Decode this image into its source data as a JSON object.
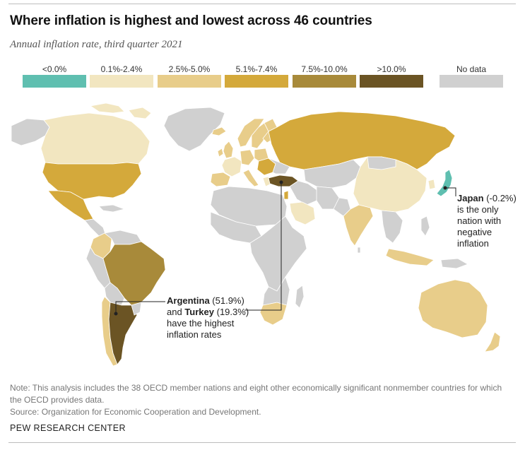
{
  "title": "Where inflation is highest and lowest across 46 countries",
  "subtitle": "Annual inflation rate, third quarter 2021",
  "legend": [
    {
      "label": "<0.0%",
      "color": "#5fbfb0"
    },
    {
      "label": "0.1%-2.4%",
      "color": "#f2e6c0"
    },
    {
      "label": "2.5%-5.0%",
      "color": "#e8cd8a"
    },
    {
      "label": "5.1%-7.4%",
      "color": "#d4a93b"
    },
    {
      "label": "7.5%-10.0%",
      "color": "#a88a3a"
    },
    {
      "label": ">10.0%",
      "color": "#6b5424"
    },
    {
      "label": "No data",
      "color": "#d0d0d0"
    }
  ],
  "annotations": {
    "japan": {
      "name": "Japan",
      "value": "(-0.2%)",
      "line2": "is the only",
      "line3": "nation with",
      "line4": "negative",
      "line5": "inflation"
    },
    "argentina_turkey": {
      "name1": "Argentina",
      "value1": "(51.9%)",
      "and": "and",
      "name2": "Turkey",
      "value2": "(19.3%)",
      "line3": "have the highest",
      "line4": "inflation rates"
    }
  },
  "note": "Note: This analysis includes the 38 OECD member nations and eight other economically significant nonmember countries for which the OECD provides data.",
  "source": "Source: Organization for Economic Cooperation and Development.",
  "credit": "PEW RESEARCH CENTER"
}
